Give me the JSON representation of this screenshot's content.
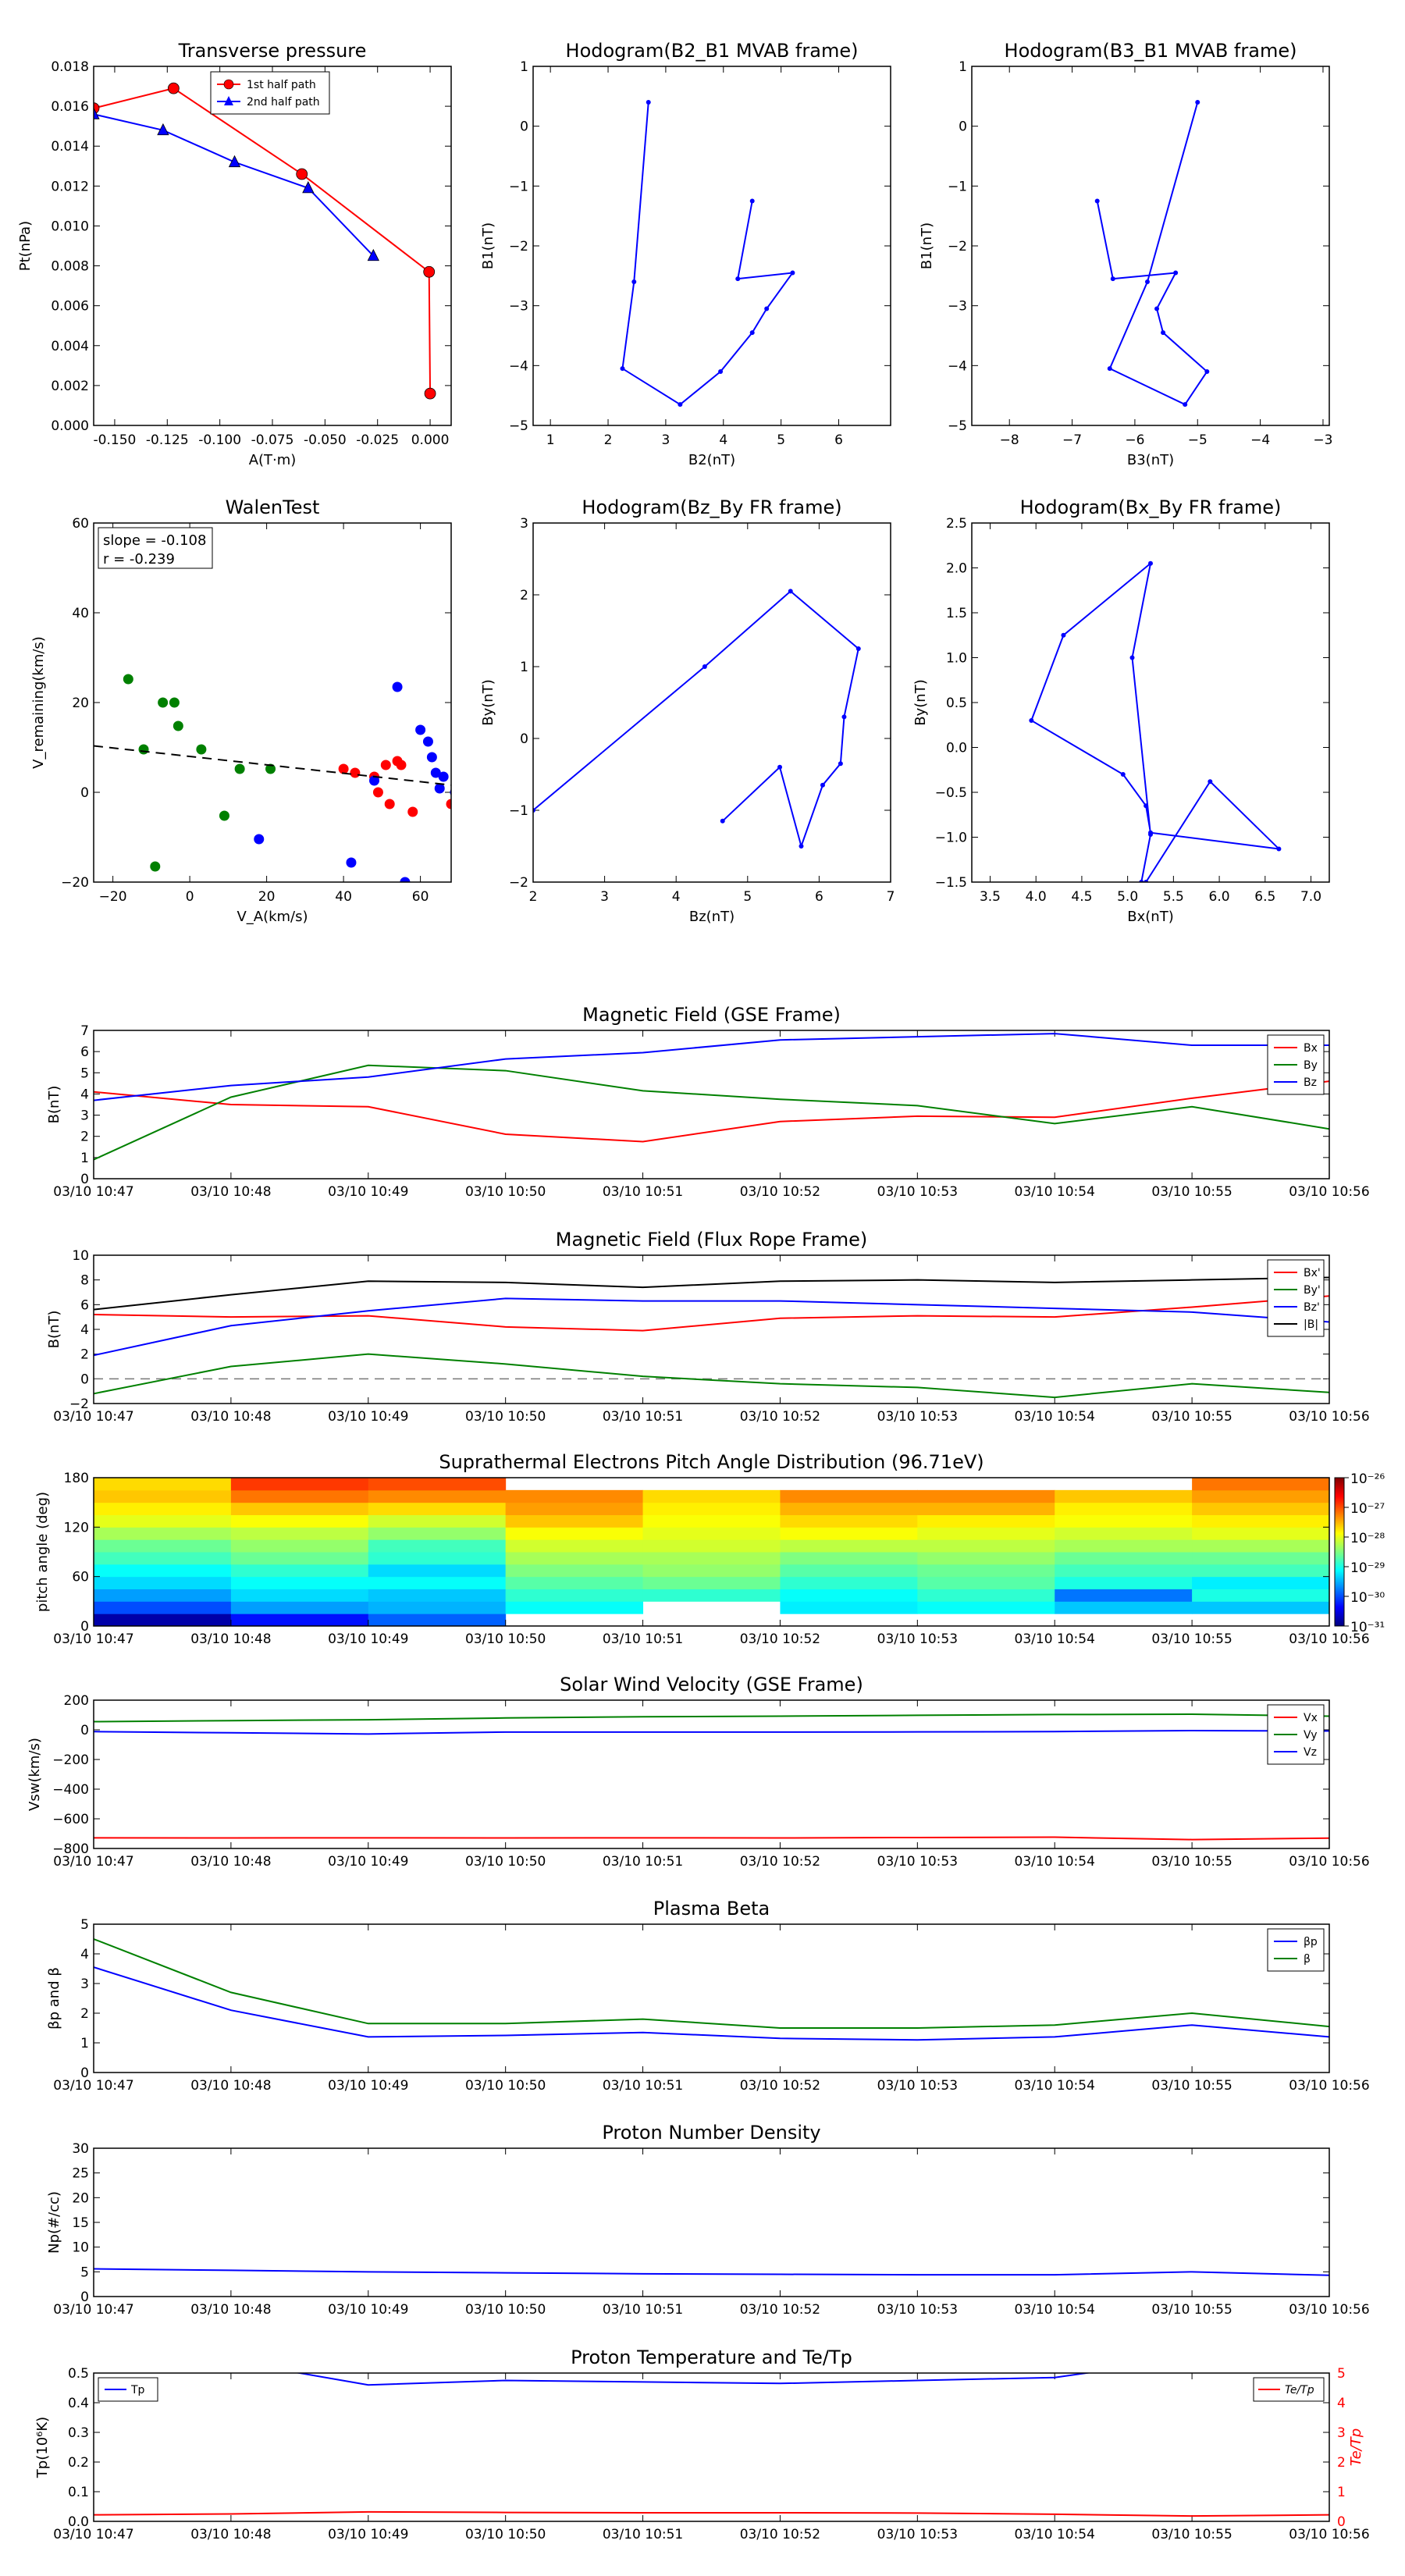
{
  "chart_data": [
    {
      "id": "pt",
      "type": "line",
      "title": "Transverse pressure",
      "xlabel": "A(T·m)",
      "ylabel": "Pt(nPa)",
      "xlim": [
        -0.16,
        0.01
      ],
      "ylim": [
        0,
        0.018
      ],
      "xticks": [
        "-0.150",
        "-0.125",
        "-0.100",
        "-0.075",
        "-0.050",
        "-0.025",
        "0.000"
      ],
      "yticks": [
        "0.000",
        "0.002",
        "0.004",
        "0.006",
        "0.008",
        "0.010",
        "0.012",
        "0.014",
        "0.016",
        "0.018"
      ],
      "legend": "top-center",
      "series": [
        {
          "name": "1st half path",
          "color": "#ff0000",
          "marker": "circle",
          "x": [
            0.0,
            -0.0005,
            -0.061,
            -0.122,
            -0.16
          ],
          "y": [
            0.0016,
            0.0077,
            0.0126,
            0.0169,
            0.0159
          ]
        },
        {
          "name": "2nd half path",
          "color": "#0000ff",
          "marker": "triangle",
          "x": [
            -0.16,
            -0.127,
            -0.093,
            -0.058,
            -0.027
          ],
          "y": [
            0.0156,
            0.0148,
            0.0132,
            0.0119,
            0.0085
          ]
        }
      ]
    },
    {
      "id": "h1",
      "type": "line",
      "title": "Hodogram(B2_B1 MVAB frame)",
      "xlabel": "B2(nT)",
      "ylabel": "B1(nT)",
      "xlim": [
        0.7,
        6.9
      ],
      "ylim": [
        -5,
        1
      ],
      "xticks": [
        "1",
        "2",
        "3",
        "4",
        "5",
        "6"
      ],
      "yticks": [
        "−5",
        "−4",
        "−3",
        "−2",
        "−1",
        "0",
        "1"
      ],
      "series": [
        {
          "color": "#0000ff",
          "x": [
            2.7,
            2.45,
            2.25,
            3.25,
            3.95,
            4.5,
            4.75,
            5.2,
            4.25,
            4.5
          ],
          "y": [
            0.4,
            -2.6,
            -4.05,
            -4.65,
            -4.1,
            -3.45,
            -3.05,
            -2.45,
            -2.55,
            -1.25
          ]
        }
      ]
    },
    {
      "id": "h2",
      "type": "line",
      "title": "Hodogram(B3_B1 MVAB frame)",
      "xlabel": "B3(nT)",
      "ylabel": "B1(nT)",
      "xlim": [
        -8.6,
        -2.9
      ],
      "ylim": [
        -5,
        1
      ],
      "xticks": [
        "−8",
        "−7",
        "−6",
        "−5",
        "−4",
        "−3"
      ],
      "yticks": [
        "−5",
        "−4",
        "−3",
        "−2",
        "−1",
        "0",
        "1"
      ],
      "series": [
        {
          "color": "#0000ff",
          "x": [
            -5.0,
            -5.8,
            -6.4,
            -5.2,
            -4.85,
            -5.55,
            -5.65,
            -5.35,
            -6.35,
            -6.6
          ],
          "y": [
            0.4,
            -2.6,
            -4.05,
            -4.65,
            -4.1,
            -3.45,
            -3.05,
            -2.45,
            -2.55,
            -1.25
          ]
        }
      ]
    },
    {
      "id": "walen",
      "type": "scatter",
      "title": "WalenTest",
      "xlabel": "V_A(km/s)",
      "ylabel": "V_remaining(km/s)",
      "xlim": [
        -25,
        68
      ],
      "ylim": [
        -24,
        68
      ],
      "xticks": [
        "−20",
        "0",
        "20",
        "40",
        "60"
      ],
      "yticks": [
        "−20",
        "0",
        "20",
        "40",
        "60"
      ],
      "annotation": [
        "slope = -0.108",
        "r = -0.239"
      ],
      "fit": {
        "slope": -0.108,
        "intercept": 8.2
      },
      "series": [
        {
          "color": "#008000",
          "x": [
            -16,
            -12,
            -7,
            -4,
            -3,
            3,
            9,
            13,
            21,
            -9
          ],
          "y": [
            28,
            10,
            22,
            22,
            16,
            10,
            -7,
            5,
            5,
            -20
          ]
        },
        {
          "color": "#ff0000",
          "x": [
            40,
            43,
            48,
            49,
            51,
            52,
            54,
            55,
            58,
            68
          ],
          "y": [
            5,
            4,
            3,
            -1,
            6,
            -4,
            7,
            6,
            -6,
            -4
          ]
        },
        {
          "color": "#0000ff",
          "x": [
            18,
            42,
            48,
            54,
            56,
            60,
            62,
            63,
            64,
            65,
            66,
            69
          ],
          "y": [
            -13,
            -19,
            2,
            26,
            -24,
            15,
            12,
            8,
            4,
            0,
            3,
            -1
          ]
        }
      ]
    },
    {
      "id": "h3",
      "type": "line",
      "title": "Hodogram(Bz_By FR frame)",
      "xlabel": "Bz(nT)",
      "ylabel": "By(nT)",
      "xlim": [
        2,
        7
      ],
      "ylim": [
        -2,
        3
      ],
      "xticks": [
        "2",
        "3",
        "4",
        "5",
        "6",
        "7"
      ],
      "yticks": [
        "−2",
        "−1",
        "0",
        "1",
        "2",
        "3"
      ],
      "series": [
        {
          "color": "#0000ff",
          "x": [
            2.0,
            4.4,
            5.6,
            6.55,
            6.35,
            6.3,
            6.05,
            5.75,
            5.45,
            4.65
          ],
          "y": [
            -1.0,
            1.0,
            2.05,
            1.25,
            0.3,
            -0.35,
            -0.65,
            -1.5,
            -0.4,
            -1.15
          ]
        }
      ]
    },
    {
      "id": "h4",
      "type": "line",
      "title": "Hodogram(Bx_By FR frame)",
      "xlabel": "Bx(nT)",
      "ylabel": "By(nT)",
      "xlim": [
        3.3,
        7.2
      ],
      "ylim": [
        -1.5,
        2.5
      ],
      "xticks": [
        "3.5",
        "4.0",
        "4.5",
        "5.0",
        "5.5",
        "6.0",
        "6.5",
        "7.0"
      ],
      "yticks": [
        "−1.5",
        "−1.0",
        "−0.5",
        "0.0",
        "0.5",
        "1.0",
        "1.5",
        "2.0",
        "2.5"
      ],
      "series": [
        {
          "color": "#0000ff",
          "x": [
            5.2,
            5.9,
            6.65,
            5.25,
            5.2,
            4.95,
            3.95,
            4.3,
            5.25,
            5.05,
            5.25,
            5.15
          ],
          "y": [
            -1.5,
            -0.38,
            -1.13,
            -0.95,
            -0.65,
            -0.3,
            0.3,
            1.25,
            2.05,
            1.0,
            -0.97,
            -1.5
          ]
        }
      ]
    },
    {
      "id": "bgse",
      "type": "line",
      "title": "Magnetic Field (GSE Frame)",
      "ylabel": "B(nT)",
      "ylim": [
        0,
        7
      ],
      "yticks": [
        "0",
        "1",
        "2",
        "3",
        "4",
        "5",
        "6",
        "7"
      ],
      "legend": "top-right",
      "categories": [
        "03/10 10:47",
        "03/10 10:48",
        "03/10 10:49",
        "03/10 10:50",
        "03/10 10:51",
        "03/10 10:52",
        "03/10 10:53",
        "03/10 10:54",
        "03/10 10:55",
        "03/10 10:56"
      ],
      "series": [
        {
          "name": "Bx",
          "color": "#ff0000",
          "values": [
            4.1,
            3.5,
            3.4,
            2.1,
            1.75,
            2.7,
            2.95,
            2.9,
            3.8,
            4.6
          ]
        },
        {
          "name": "By",
          "color": "#008000",
          "values": [
            0.9,
            3.85,
            5.35,
            5.1,
            4.15,
            3.75,
            3.45,
            2.6,
            3.4,
            2.35
          ]
        },
        {
          "name": "Bz",
          "color": "#0000ff",
          "values": [
            3.7,
            4.4,
            4.8,
            5.65,
            5.95,
            6.55,
            6.7,
            6.85,
            6.3,
            6.3
          ]
        }
      ]
    },
    {
      "id": "bfr",
      "type": "line",
      "title": "Magnetic Field (Flux Rope Frame)",
      "ylabel": "B(nT)",
      "ylim": [
        -2,
        10
      ],
      "yticks": [
        "−2",
        "0",
        "2",
        "4",
        "6",
        "8",
        "10"
      ],
      "legend": "top-right",
      "zero_line": true,
      "categories": [
        "03/10 10:47",
        "03/10 10:48",
        "03/10 10:49",
        "03/10 10:50",
        "03/10 10:51",
        "03/10 10:52",
        "03/10 10:53",
        "03/10 10:54",
        "03/10 10:55",
        "03/10 10:56"
      ],
      "series": [
        {
          "name": "Bx'",
          "color": "#ff0000",
          "values": [
            5.2,
            5.0,
            5.1,
            4.2,
            3.9,
            4.9,
            5.1,
            5.0,
            5.8,
            6.7
          ]
        },
        {
          "name": "By'",
          "color": "#008000",
          "values": [
            -1.2,
            1.0,
            2.0,
            1.2,
            0.2,
            -0.4,
            -0.7,
            -1.5,
            -0.4,
            -1.1
          ]
        },
        {
          "name": "Bz'",
          "color": "#0000ff",
          "values": [
            1.9,
            4.3,
            5.5,
            6.5,
            6.3,
            6.3,
            6.0,
            5.7,
            5.4,
            4.6
          ]
        },
        {
          "name": "|B|",
          "color": "#000000",
          "values": [
            5.6,
            6.8,
            7.9,
            7.8,
            7.4,
            7.9,
            8.0,
            7.8,
            8.0,
            8.2
          ]
        }
      ]
    },
    {
      "id": "pad",
      "type": "heatmap",
      "title": "Suprathermal Electrons Pitch Angle Distribution (96.71eV)",
      "ylabel": "pitch angle (deg)",
      "ylim": [
        0,
        180
      ],
      "yticks": [
        "0",
        "60",
        "120",
        "180"
      ],
      "categories": [
        "03/10 10:47",
        "03/10 10:48",
        "03/10 10:49",
        "03/10 10:50",
        "03/10 10:51",
        "03/10 10:52",
        "03/10 10:53",
        "03/10 10:54",
        "03/10 10:55",
        "03/10 10:56"
      ],
      "colorbar": {
        "labels": [
          "10⁻²⁶",
          "10⁻²⁷",
          "10⁻²⁸",
          "10⁻²⁹",
          "10⁻³⁰",
          "10⁻³¹"
        ],
        "min_exp": -31,
        "max_exp": -26
      },
      "bins": [
        7.5,
        22.5,
        37.5,
        52.5,
        67.5,
        82.5,
        97.5,
        112.5,
        127.5,
        142.5,
        157.5,
        172.5
      ],
      "values": [
        [
          -30.8,
          -30.0,
          -29.6,
          -29.3,
          -29.1,
          -28.8,
          -28.6,
          -28.3,
          -28.0,
          -27.8,
          -27.6,
          -27.7
        ],
        [
          -30.3,
          -29.6,
          -29.3,
          -29.1,
          -28.9,
          -28.6,
          -28.4,
          -28.2,
          -27.9,
          -27.6,
          -27.2,
          -26.9
        ],
        [
          -29.9,
          -29.5,
          -29.4,
          -29.1,
          -29.3,
          -28.9,
          -28.8,
          -28.4,
          -28.1,
          -27.7,
          -27.3,
          -27.0
        ],
        [
          null,
          -29.1,
          -28.9,
          -28.7,
          -28.5,
          -28.3,
          -28.1,
          -27.9,
          -27.6,
          -27.4,
          -27.3,
          null
        ],
        [
          null,
          null,
          -28.9,
          -28.6,
          -28.4,
          -28.3,
          -28.1,
          -28.0,
          -27.9,
          -27.8,
          -27.7,
          null
        ],
        [
          null,
          -29.2,
          -29.1,
          -28.9,
          -28.7,
          -28.5,
          -28.2,
          -27.9,
          -27.7,
          -27.5,
          -27.3,
          null
        ],
        [
          null,
          -29.1,
          -28.9,
          -28.7,
          -28.6,
          -28.4,
          -28.2,
          -28.0,
          -27.8,
          -27.5,
          -27.3,
          null
        ],
        [
          null,
          -29.4,
          -29.8,
          -29.0,
          -28.8,
          -28.6,
          -28.3,
          -28.1,
          -27.9,
          -27.8,
          -27.6,
          null
        ],
        [
          null,
          -29.4,
          -29.0,
          -29.2,
          -28.8,
          -28.6,
          -28.3,
          -28.0,
          -27.8,
          -27.6,
          -27.4,
          -27.2
        ]
      ]
    },
    {
      "id": "vsw",
      "type": "line",
      "title": "Solar Wind Velocity (GSE Frame)",
      "ylabel": "Vsw(km/s)",
      "ylim": [
        -800,
        200
      ],
      "yticks": [
        "−800",
        "−600",
        "−400",
        "−200",
        "0",
        "200"
      ],
      "legend": "top-right",
      "categories": [
        "03/10 10:47",
        "03/10 10:48",
        "03/10 10:49",
        "03/10 10:50",
        "03/10 10:51",
        "03/10 10:52",
        "03/10 10:53",
        "03/10 10:54",
        "03/10 10:55",
        "03/10 10:56"
      ],
      "series": [
        {
          "name": "Vx",
          "color": "#ff0000",
          "values": [
            -728,
            -729,
            -728,
            -729,
            -728,
            -729,
            -726,
            -724,
            -740,
            -730
          ]
        },
        {
          "name": "Vy",
          "color": "#008000",
          "values": [
            55,
            62,
            68,
            80,
            88,
            92,
            98,
            103,
            105,
            92
          ]
        },
        {
          "name": "Vz",
          "color": "#0000ff",
          "values": [
            -12,
            -20,
            -28,
            -15,
            -15,
            -15,
            -14,
            -12,
            -5,
            -8
          ]
        }
      ]
    },
    {
      "id": "beta",
      "type": "line",
      "title": "Plasma Beta",
      "ylabel": "βp and β",
      "ylim": [
        0,
        5
      ],
      "yticks": [
        "0",
        "1",
        "2",
        "3",
        "4",
        "5"
      ],
      "legend": "top-right",
      "categories": [
        "03/10 10:47",
        "03/10 10:48",
        "03/10 10:49",
        "03/10 10:50",
        "03/10 10:51",
        "03/10 10:52",
        "03/10 10:53",
        "03/10 10:54",
        "03/10 10:55",
        "03/10 10:56"
      ],
      "series": [
        {
          "name": "βp",
          "color": "#0000ff",
          "values": [
            3.55,
            2.1,
            1.2,
            1.25,
            1.35,
            1.15,
            1.1,
            1.2,
            1.6,
            1.2
          ]
        },
        {
          "name": "β",
          "color": "#008000",
          "values": [
            4.5,
            2.7,
            1.65,
            1.65,
            1.8,
            1.5,
            1.5,
            1.6,
            2.0,
            1.55
          ]
        }
      ]
    },
    {
      "id": "np",
      "type": "line",
      "title": "Proton Number Density",
      "ylabel": "Np(#/cc)",
      "ylim": [
        0,
        30
      ],
      "yticks": [
        "0",
        "5",
        "10",
        "15",
        "20",
        "25",
        "30"
      ],
      "categories": [
        "03/10 10:47",
        "03/10 10:48",
        "03/10 10:49",
        "03/10 10:50",
        "03/10 10:51",
        "03/10 10:52",
        "03/10 10:53",
        "03/10 10:54",
        "03/10 10:55",
        "03/10 10:56"
      ],
      "series": [
        {
          "color": "#0000ff",
          "values": [
            5.6,
            5.3,
            5.0,
            4.8,
            4.6,
            4.5,
            4.4,
            4.4,
            5.0,
            4.3
          ]
        }
      ]
    },
    {
      "id": "tp",
      "type": "line",
      "title": "Proton Temperature and Te/Tp",
      "ylabel": "Tp(10⁶K)",
      "y2label": "Te/Tp",
      "ylim": [
        0,
        0.5
      ],
      "yticks": [
        "0.0",
        "0.1",
        "0.2",
        "0.3",
        "0.4",
        "0.5"
      ],
      "y2lim": [
        0,
        5
      ],
      "y2ticks": [
        "0",
        "1",
        "2",
        "3",
        "4",
        "5"
      ],
      "categories": [
        "03/10 10:47",
        "03/10 10:48",
        "03/10 10:49",
        "03/10 10:50",
        "03/10 10:51",
        "03/10 10:52",
        "03/10 10:53",
        "03/10 10:54",
        "03/10 10:55",
        "03/10 10:56"
      ],
      "series": [
        {
          "name": "Tp",
          "color": "#0000ff",
          "axis": "left",
          "values": [
            0.56,
            0.54,
            0.46,
            0.475,
            0.47,
            0.465,
            0.475,
            0.485,
            0.55,
            0.52
          ]
        },
        {
          "name": "Te/Tp",
          "color": "#ff0000",
          "axis": "right",
          "values": [
            0.22,
            0.25,
            0.32,
            0.3,
            0.29,
            0.29,
            0.28,
            0.24,
            0.18,
            0.22
          ]
        }
      ]
    }
  ]
}
